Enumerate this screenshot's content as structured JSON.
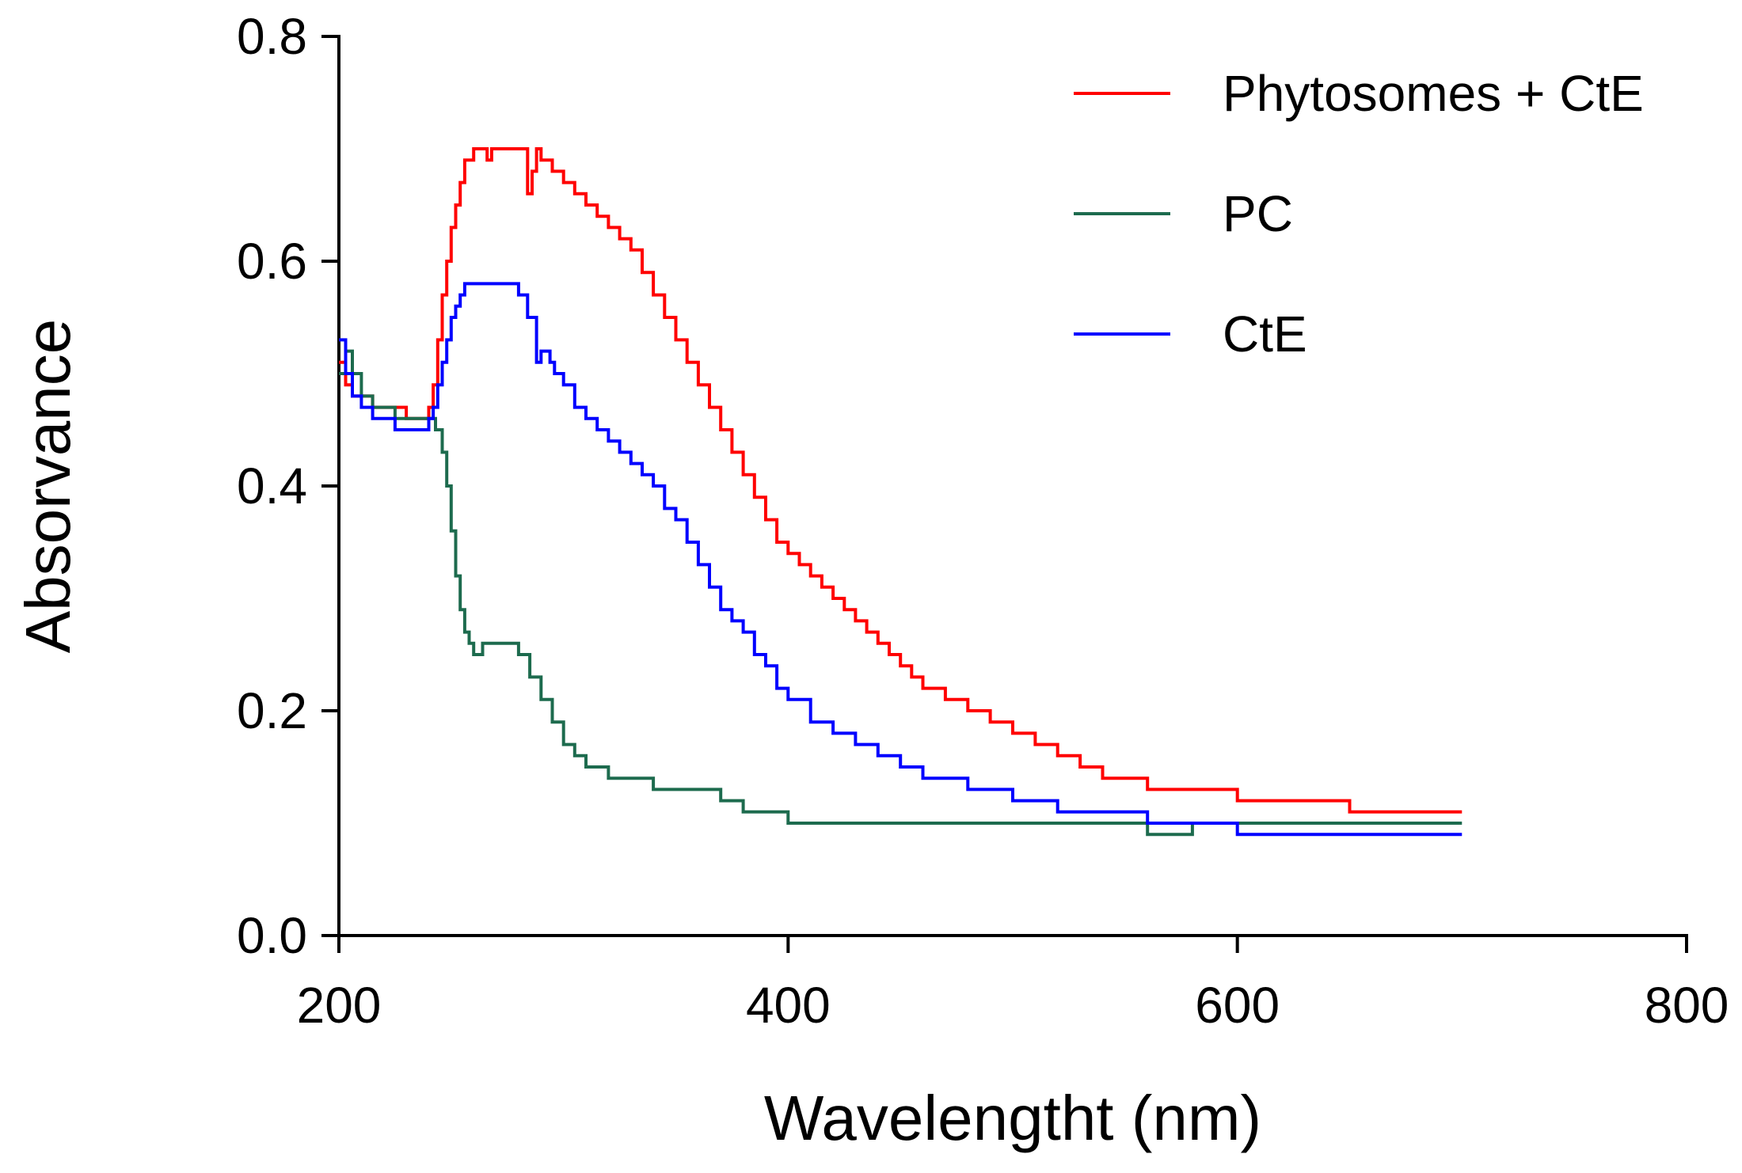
{
  "chart_data": {
    "type": "line",
    "title": "",
    "xlabel": "Wavelengtht  (nm)",
    "ylabel": "Absorvance",
    "xlim": [
      200,
      800
    ],
    "ylim": [
      0,
      0.8
    ],
    "xticks": [
      200,
      400,
      600,
      800
    ],
    "xtick_labels": [
      "200",
      "400",
      "600",
      "800"
    ],
    "yticks": [
      0.0,
      0.2,
      0.4,
      0.6,
      0.8
    ],
    "ytick_labels": [
      "0.0",
      "0.2",
      "0.4",
      "0.6",
      "0.8"
    ],
    "grid": false,
    "legend_position": "top-right",
    "series": [
      {
        "name": "Phytosomes + CtE",
        "color": "#ff0000",
        "x": [
          200,
          203,
          206,
          210,
          215,
          220,
          225,
          230,
          235,
          240,
          242,
          244,
          246,
          248,
          250,
          252,
          254,
          256,
          258,
          260,
          262,
          264,
          266,
          268,
          270,
          275,
          280,
          284,
          286,
          288,
          290,
          295,
          300,
          305,
          310,
          315,
          320,
          325,
          330,
          335,
          340,
          345,
          350,
          355,
          360,
          365,
          370,
          375,
          380,
          385,
          390,
          395,
          400,
          405,
          410,
          415,
          420,
          425,
          430,
          435,
          440,
          445,
          450,
          455,
          460,
          470,
          480,
          490,
          500,
          510,
          520,
          530,
          540,
          560,
          580,
          600,
          620,
          640,
          650,
          660,
          680,
          700
        ],
        "y": [
          0.51,
          0.49,
          0.48,
          0.48,
          0.47,
          0.47,
          0.47,
          0.46,
          0.46,
          0.47,
          0.49,
          0.53,
          0.57,
          0.6,
          0.63,
          0.65,
          0.67,
          0.69,
          0.69,
          0.7,
          0.7,
          0.7,
          0.69,
          0.7,
          0.7,
          0.7,
          0.7,
          0.66,
          0.68,
          0.7,
          0.69,
          0.68,
          0.67,
          0.66,
          0.65,
          0.64,
          0.63,
          0.62,
          0.61,
          0.59,
          0.57,
          0.55,
          0.53,
          0.51,
          0.49,
          0.47,
          0.45,
          0.43,
          0.41,
          0.39,
          0.37,
          0.35,
          0.34,
          0.33,
          0.32,
          0.31,
          0.3,
          0.29,
          0.28,
          0.27,
          0.26,
          0.25,
          0.24,
          0.23,
          0.22,
          0.21,
          0.2,
          0.19,
          0.18,
          0.17,
          0.16,
          0.15,
          0.14,
          0.13,
          0.13,
          0.12,
          0.12,
          0.12,
          0.11,
          0.11,
          0.11,
          0.11
        ]
      },
      {
        "name": "PC",
        "color": "#1d6b4e",
        "x": [
          200,
          203,
          206,
          210,
          215,
          220,
          225,
          230,
          235,
          240,
          243,
          246,
          248,
          250,
          252,
          254,
          256,
          258,
          260,
          262,
          264,
          266,
          268,
          270,
          275,
          280,
          285,
          290,
          295,
          300,
          305,
          310,
          315,
          320,
          325,
          330,
          340,
          350,
          360,
          370,
          380,
          390,
          400,
          420,
          440,
          460,
          500,
          540,
          560,
          580,
          600,
          620,
          640,
          680,
          700
        ],
        "y": [
          0.5,
          0.52,
          0.5,
          0.48,
          0.47,
          0.47,
          0.46,
          0.46,
          0.46,
          0.46,
          0.45,
          0.43,
          0.4,
          0.36,
          0.32,
          0.29,
          0.27,
          0.26,
          0.25,
          0.25,
          0.26,
          0.26,
          0.26,
          0.26,
          0.26,
          0.25,
          0.23,
          0.21,
          0.19,
          0.17,
          0.16,
          0.15,
          0.15,
          0.14,
          0.14,
          0.14,
          0.13,
          0.13,
          0.13,
          0.12,
          0.11,
          0.11,
          0.1,
          0.1,
          0.1,
          0.1,
          0.1,
          0.1,
          0.09,
          0.1,
          0.1,
          0.1,
          0.1,
          0.1,
          0.1
        ]
      },
      {
        "name": "CtE",
        "color": "#0000ff",
        "x": [
          200,
          203,
          206,
          210,
          215,
          220,
          225,
          230,
          235,
          240,
          242,
          244,
          246,
          248,
          250,
          252,
          254,
          256,
          258,
          260,
          265,
          270,
          275,
          280,
          284,
          288,
          290,
          292,
          294,
          296,
          300,
          305,
          310,
          315,
          320,
          325,
          330,
          335,
          340,
          345,
          350,
          355,
          360,
          365,
          370,
          375,
          380,
          385,
          390,
          395,
          400,
          410,
          420,
          430,
          440,
          450,
          460,
          480,
          500,
          520,
          540,
          560,
          580,
          600,
          620,
          640,
          660,
          680,
          700
        ],
        "y": [
          0.53,
          0.5,
          0.48,
          0.47,
          0.46,
          0.46,
          0.45,
          0.45,
          0.45,
          0.46,
          0.47,
          0.49,
          0.51,
          0.53,
          0.55,
          0.56,
          0.57,
          0.58,
          0.58,
          0.58,
          0.58,
          0.58,
          0.58,
          0.57,
          0.55,
          0.51,
          0.52,
          0.52,
          0.51,
          0.5,
          0.49,
          0.47,
          0.46,
          0.45,
          0.44,
          0.43,
          0.42,
          0.41,
          0.4,
          0.38,
          0.37,
          0.35,
          0.33,
          0.31,
          0.29,
          0.28,
          0.27,
          0.25,
          0.24,
          0.22,
          0.21,
          0.19,
          0.18,
          0.17,
          0.16,
          0.15,
          0.14,
          0.13,
          0.12,
          0.11,
          0.11,
          0.1,
          0.1,
          0.09,
          0.09,
          0.09,
          0.09,
          0.09,
          0.09
        ]
      }
    ]
  }
}
